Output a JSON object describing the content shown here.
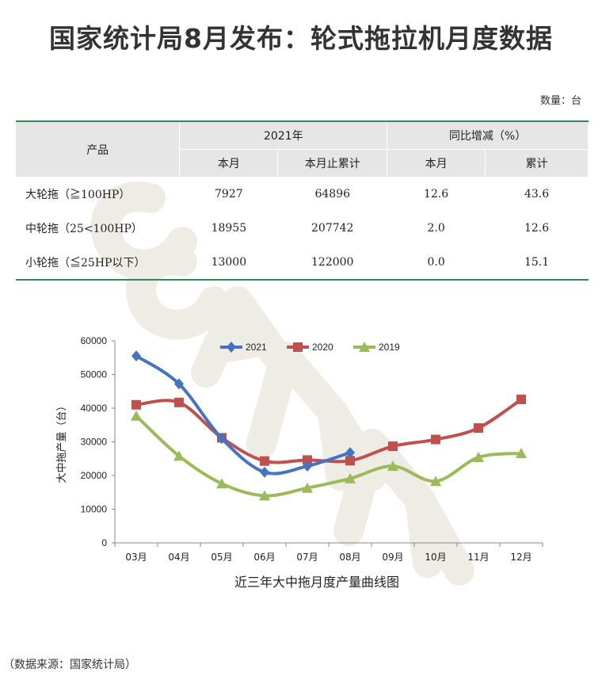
{
  "page": {
    "title": "国家统计局8月发布：轮式拖拉机月度数据",
    "unit": "数量：台",
    "source": "（数据来源：国家统计局）"
  },
  "table": {
    "product_header": "产品",
    "group_2021": "2021年",
    "group_yoy": "同比增减（%）",
    "sub_month": "本月",
    "sub_cumulative": "本月止累计",
    "sub_yoy_month": "本月",
    "sub_yoy_cumulative": "累计",
    "rows": [
      {
        "product": "大轮拖（≧100HP）",
        "month": "7927",
        "cumulative": "64896",
        "yoy_month": "12.6",
        "yoy_cumulative": "43.6"
      },
      {
        "product": "中轮拖（25<100HP）",
        "month": "18955",
        "cumulative": "207742",
        "yoy_month": "2.0",
        "yoy_cumulative": "12.6"
      },
      {
        "product": "小轮拖（≦25HP以下）",
        "month": "13000",
        "cumulative": "122000",
        "yoy_month": "0.0",
        "yoy_cumulative": "15.1"
      }
    ]
  },
  "chart_data": {
    "type": "line",
    "title": "近三年大中拖月度产量曲线图",
    "ylabel": "大中拖产量（台）",
    "xlabel": "",
    "ylim": [
      0,
      60000
    ],
    "yticks": [
      0,
      10000,
      20000,
      30000,
      40000,
      50000,
      60000
    ],
    "categories": [
      "03月",
      "04月",
      "05月",
      "06月",
      "07月",
      "08月",
      "09月",
      "10月",
      "11月",
      "12月"
    ],
    "legend_position": "top-center",
    "grid": false,
    "series": [
      {
        "name": "2021",
        "color": "#4472c4",
        "marker": "diamond",
        "values": [
          55500,
          47200,
          31000,
          21000,
          22800,
          26800,
          null,
          null,
          null,
          null
        ]
      },
      {
        "name": "2020",
        "color": "#c0504d",
        "marker": "square",
        "values": [
          41000,
          41700,
          31200,
          24300,
          24600,
          24400,
          28700,
          30700,
          34100,
          42600
        ]
      },
      {
        "name": "2019",
        "color": "#9bbb59",
        "marker": "triangle",
        "values": [
          37700,
          25800,
          17600,
          14000,
          16300,
          19100,
          22800,
          18300,
          25400,
          26600
        ]
      }
    ]
  }
}
